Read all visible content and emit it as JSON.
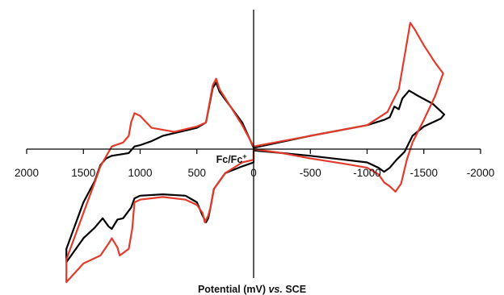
{
  "chart_data": {
    "type": "line",
    "title": "",
    "xlabel_parts": [
      "Potential (mV) ",
      "vs.",
      " SCE"
    ],
    "ylabel": "",
    "x_reversed": true,
    "xlim": [
      2000,
      -2000
    ],
    "xticks": [
      2000,
      1500,
      1000,
      500,
      0,
      -500,
      -1000,
      -1500,
      -2000
    ],
    "xtick_labels": [
      "2000",
      "1500",
      "1000",
      "500",
      "0",
      "-500",
      "-1000",
      "-1500",
      "-2000"
    ],
    "ylim": [
      -100,
      100
    ],
    "grid": false,
    "legend": "none",
    "annotation": {
      "base": "Fc/Fc",
      "sup": "+",
      "x": 330,
      "y": 26
    },
    "series": [
      {
        "color": "#000000",
        "points": [
          [
            0,
            -1
          ],
          [
            -250,
            -3
          ],
          [
            -500,
            -5
          ],
          [
            -800,
            -8
          ],
          [
            -1000,
            -10
          ],
          [
            -1100,
            -14
          ],
          [
            -1150,
            -17
          ],
          [
            -1200,
            -14
          ],
          [
            -1260,
            -8
          ],
          [
            -1330,
            -2
          ],
          [
            -1400,
            10
          ],
          [
            -1500,
            17
          ],
          [
            -1650,
            23
          ],
          [
            -1680,
            26
          ],
          [
            -1580,
            34
          ],
          [
            -1450,
            40
          ],
          [
            -1370,
            44
          ],
          [
            -1310,
            38
          ],
          [
            -1280,
            30
          ],
          [
            -1240,
            32
          ],
          [
            -1200,
            24
          ],
          [
            -1150,
            22
          ],
          [
            -1000,
            18
          ],
          [
            -500,
            10
          ],
          [
            0,
            1
          ],
          [
            100,
            20
          ],
          [
            300,
            43
          ],
          [
            330,
            50
          ],
          [
            360,
            46
          ],
          [
            420,
            20
          ],
          [
            500,
            16
          ],
          [
            600,
            14
          ],
          [
            700,
            12
          ],
          [
            800,
            10
          ],
          [
            900,
            6
          ],
          [
            1000,
            3
          ],
          [
            1050,
            2
          ],
          [
            1100,
            -3
          ],
          [
            1250,
            -5
          ],
          [
            1300,
            -7
          ],
          [
            1350,
            -12
          ],
          [
            1400,
            -24
          ],
          [
            1500,
            -40
          ],
          [
            1650,
            -75
          ],
          [
            1650,
            -85
          ],
          [
            1500,
            -67
          ],
          [
            1400,
            -59
          ],
          [
            1330,
            -52
          ],
          [
            1280,
            -58
          ],
          [
            1250,
            -60
          ],
          [
            1200,
            -53
          ],
          [
            1150,
            -52
          ],
          [
            1080,
            -44
          ],
          [
            1050,
            -37
          ],
          [
            1000,
            -35
          ],
          [
            800,
            -34
          ],
          [
            600,
            -35
          ],
          [
            500,
            -40
          ],
          [
            450,
            -50
          ],
          [
            420,
            -55
          ],
          [
            400,
            -52
          ],
          [
            380,
            -44
          ],
          [
            350,
            -30
          ],
          [
            250,
            -18
          ],
          [
            100,
            -13
          ],
          [
            0,
            -10
          ]
        ]
      },
      {
        "color": "#e33b2b",
        "points": [
          [
            0,
            0
          ],
          [
            -250,
            -3
          ],
          [
            -500,
            -7
          ],
          [
            -800,
            -11
          ],
          [
            -1000,
            -14
          ],
          [
            -1100,
            -19
          ],
          [
            -1150,
            -25
          ],
          [
            -1200,
            -28
          ],
          [
            -1250,
            -32
          ],
          [
            -1300,
            -26
          ],
          [
            -1350,
            -8
          ],
          [
            -1400,
            5
          ],
          [
            -1500,
            22
          ],
          [
            -1600,
            40
          ],
          [
            -1670,
            57
          ],
          [
            -1600,
            65
          ],
          [
            -1500,
            78
          ],
          [
            -1420,
            90
          ],
          [
            -1380,
            95
          ],
          [
            -1330,
            70
          ],
          [
            -1280,
            45
          ],
          [
            -1220,
            35
          ],
          [
            -1180,
            28
          ],
          [
            -1000,
            18
          ],
          [
            -500,
            10
          ],
          [
            0,
            2
          ],
          [
            100,
            18
          ],
          [
            300,
            45
          ],
          [
            330,
            53
          ],
          [
            360,
            48
          ],
          [
            420,
            20
          ],
          [
            500,
            17
          ],
          [
            700,
            13
          ],
          [
            900,
            16
          ],
          [
            1000,
            25
          ],
          [
            1050,
            27
          ],
          [
            1080,
            20
          ],
          [
            1100,
            10
          ],
          [
            1150,
            5
          ],
          [
            1250,
            2
          ],
          [
            1350,
            -13
          ],
          [
            1400,
            -25
          ],
          [
            1500,
            -48
          ],
          [
            1650,
            -83
          ],
          [
            1650,
            -100
          ],
          [
            1500,
            -86
          ],
          [
            1350,
            -80
          ],
          [
            1270,
            -70
          ],
          [
            1250,
            -67
          ],
          [
            1200,
            -74
          ],
          [
            1180,
            -80
          ],
          [
            1100,
            -75
          ],
          [
            1070,
            -60
          ],
          [
            1050,
            -40
          ],
          [
            1000,
            -38
          ],
          [
            800,
            -36
          ],
          [
            600,
            -38
          ],
          [
            500,
            -42
          ],
          [
            450,
            -48
          ],
          [
            430,
            -55
          ],
          [
            400,
            -50
          ],
          [
            380,
            -44
          ],
          [
            350,
            -30
          ],
          [
            250,
            -18
          ],
          [
            100,
            -10
          ],
          [
            0,
            -8
          ]
        ]
      }
    ]
  }
}
